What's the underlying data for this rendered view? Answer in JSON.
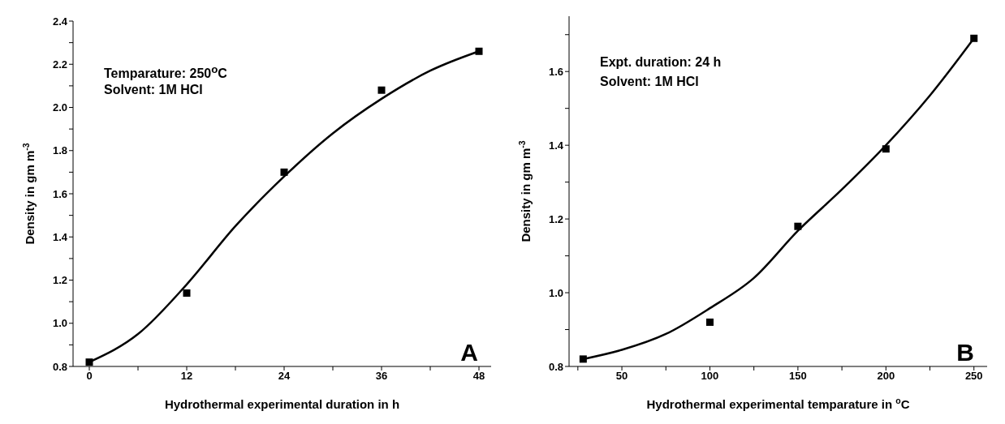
{
  "chart_data": [
    {
      "type": "scatter",
      "xlabel": "Hydrothermal experimental duration in h",
      "ylabel": "Density in gm m$^{-3}$",
      "annotations": [
        "Temparature: 250$^{o}$C",
        "Solvent: 1M HCl",
        "A"
      ],
      "marker": "square",
      "xlim": [
        -2,
        49.5
      ],
      "xticks": [
        0,
        {
          "value": 6,
          "label": null
        },
        12,
        {
          "value": 18,
          "label": null
        },
        24,
        {
          "value": 30,
          "label": null
        },
        36,
        {
          "value": 42,
          "label": null
        },
        48
      ],
      "ylim": [
        0.8,
        2.4
      ],
      "yticks": [
        0.8,
        {
          "value": 0.9,
          "label": null
        },
        {
          "value": 1,
          "label": "1.0"
        },
        {
          "value": 1.1,
          "label": null
        },
        1.2,
        {
          "value": 1.3,
          "label": null
        },
        1.4,
        {
          "value": 1.5,
          "label": null
        },
        1.6,
        {
          "value": 1.7,
          "label": null
        },
        1.8,
        {
          "value": 1.9,
          "label": null
        },
        {
          "value": 2,
          "label": "2.0"
        },
        {
          "value": 2.1,
          "label": null
        },
        2.2,
        {
          "value": 2.3,
          "label": null
        },
        2.4
      ],
      "series": [
        {
          "color": "#000000",
          "x": [
            0,
            12,
            24,
            36,
            48
          ],
          "values": [
            0.82,
            1.14,
            1.7,
            2.08,
            2.26
          ]
        },
        {
          "type": "line",
          "color": "#000000",
          "marker": "none",
          "line_style": "solid",
          "x": [
            0,
            6,
            12,
            18,
            24,
            30,
            36,
            42,
            48
          ],
          "values": [
            0.82,
            0.95,
            1.18,
            1.45,
            1.68,
            1.88,
            2.04,
            2.17,
            2.26
          ]
        }
      ]
    },
    {
      "type": "scatter",
      "xlabel": "Hydrothermal experimental temparature in $^{o}$C",
      "ylabel": "Density in gm m$^{-3}$",
      "annotations": [
        "Expt. duration: 24 h",
        "Solvent: 1M HCl",
        "B"
      ],
      "marker": "square",
      "xlim": [
        20,
        257.5
      ],
      "xticks": [
        {
          "value": 25,
          "label": null
        },
        50,
        {
          "value": 75,
          "label": null
        },
        100,
        {
          "value": 125,
          "label": null
        },
        150,
        {
          "value": 175,
          "label": null
        },
        200,
        {
          "value": 225,
          "label": null
        },
        250
      ],
      "ylim": [
        0.8,
        1.75
      ],
      "yticks": [
        0.8,
        {
          "value": 0.9,
          "label": null
        },
        {
          "value": 1,
          "label": "1.0"
        },
        {
          "value": 1.1,
          "label": null
        },
        1.2,
        {
          "value": 1.3,
          "label": null
        },
        1.4,
        {
          "value": 1.5,
          "label": null
        },
        1.6,
        {
          "value": 1.7,
          "label": null
        }
      ],
      "series": [
        {
          "color": "#000000",
          "x": [
            28,
            100,
            150,
            200,
            250
          ],
          "values": [
            0.82,
            0.92,
            1.18,
            1.39,
            1.69
          ]
        },
        {
          "type": "line",
          "color": "#000000",
          "marker": "none",
          "line_style": "solid",
          "x": [
            28,
            50,
            75,
            100,
            125,
            150,
            175,
            200,
            225,
            250
          ],
          "values": [
            0.82,
            0.845,
            0.888,
            0.958,
            1.04,
            1.168,
            1.28,
            1.4,
            1.535,
            1.69
          ]
        }
      ]
    }
  ]
}
